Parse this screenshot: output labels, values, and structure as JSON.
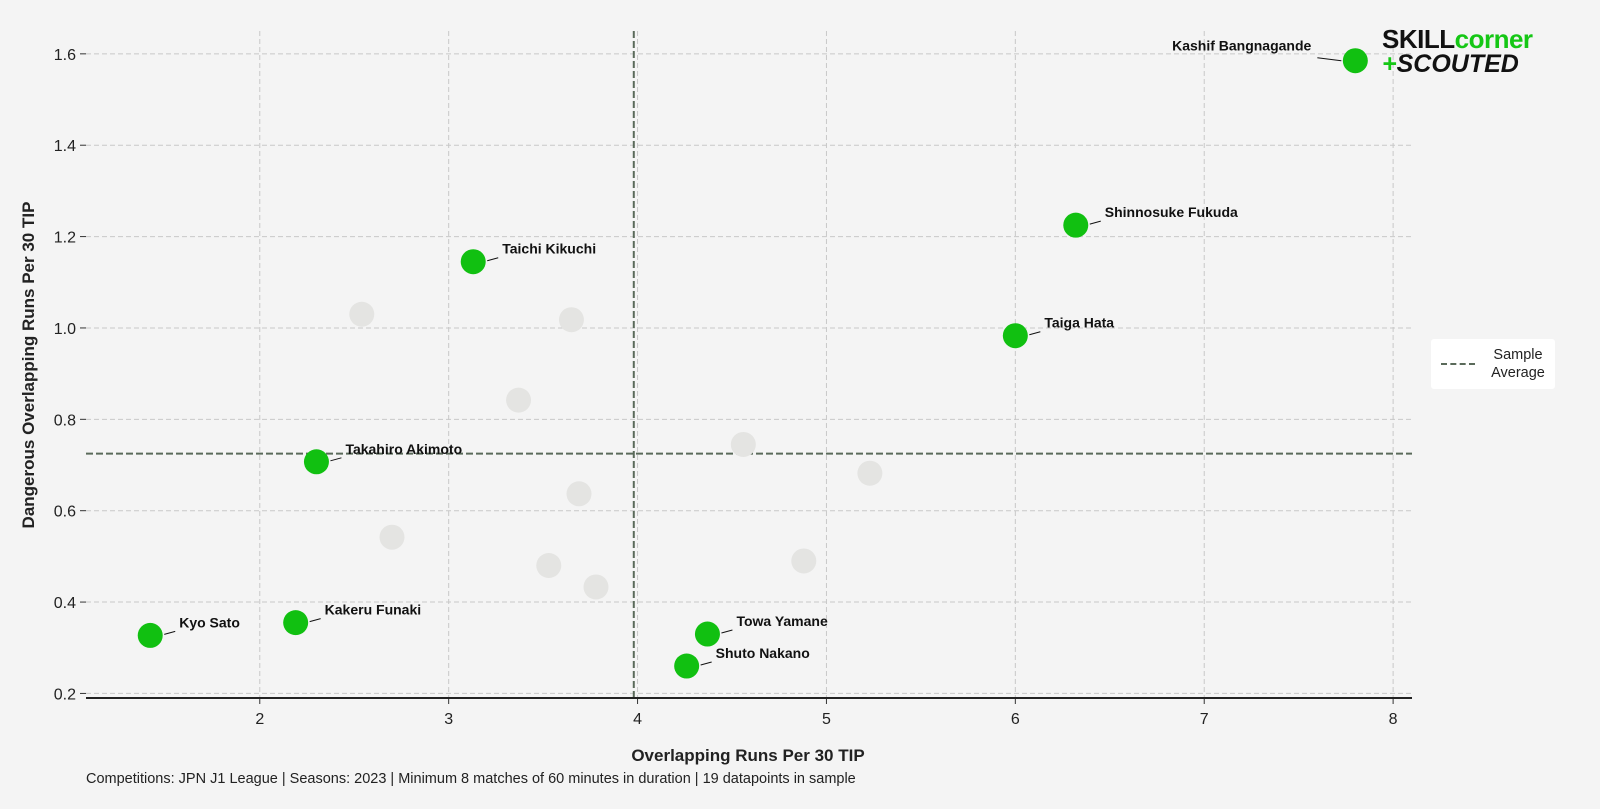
{
  "chart_data": {
    "type": "scatter",
    "xlabel": "Overlapping Runs Per 30 TIP",
    "ylabel": "Dangerous Overlapping Runs Per 30 TIP",
    "xlim": [
      1.08,
      8.1
    ],
    "ylim": [
      0.19,
      1.65
    ],
    "xticks": [
      2,
      3,
      4,
      5,
      6,
      7,
      8
    ],
    "yticks": [
      0.2,
      0.4,
      0.6,
      0.8,
      1.0,
      1.2,
      1.4,
      1.6
    ],
    "grid": true,
    "sample_average": {
      "x": 3.98,
      "y": 0.725,
      "legend_label": "Sample Average"
    },
    "highlighted": [
      {
        "name": "Kashif Bangnagande",
        "x": 7.8,
        "y": 1.585
      },
      {
        "name": "Shinnosuke Fukuda",
        "x": 6.32,
        "y": 1.225
      },
      {
        "name": "Taichi Kikuchi",
        "x": 3.13,
        "y": 1.145
      },
      {
        "name": "Taiga Hata",
        "x": 6.0,
        "y": 0.983
      },
      {
        "name": "Takahiro Akimoto",
        "x": 2.3,
        "y": 0.707
      },
      {
        "name": "Kakeru Funaki",
        "x": 2.19,
        "y": 0.355
      },
      {
        "name": "Kyo Sato",
        "x": 1.42,
        "y": 0.327
      },
      {
        "name": "Towa Yamane",
        "x": 4.37,
        "y": 0.33
      },
      {
        "name": "Shuto Nakano",
        "x": 4.26,
        "y": 0.26
      }
    ],
    "others": [
      {
        "x": 2.54,
        "y": 1.03
      },
      {
        "x": 3.65,
        "y": 1.018
      },
      {
        "x": 3.37,
        "y": 0.842
      },
      {
        "x": 4.56,
        "y": 0.745
      },
      {
        "x": 5.23,
        "y": 0.682
      },
      {
        "x": 3.69,
        "y": 0.637
      },
      {
        "x": 2.7,
        "y": 0.542
      },
      {
        "x": 3.53,
        "y": 0.48
      },
      {
        "x": 4.88,
        "y": 0.49
      },
      {
        "x": 3.78,
        "y": 0.433
      }
    ]
  },
  "colors": {
    "highlight": "#11c011",
    "other": "#e4e4e2",
    "average_line": "#5a6a5a",
    "grid": "#c8c8c8"
  },
  "logo": {
    "word1": "SKILL",
    "word2": "corner",
    "plus": "+",
    "word3": "SCOUTED"
  },
  "footnote": "Competitions: JPN J1 League | Seasons: 2023 | Minimum 8 matches of 60 minutes in duration | 19 datapoints in sample"
}
